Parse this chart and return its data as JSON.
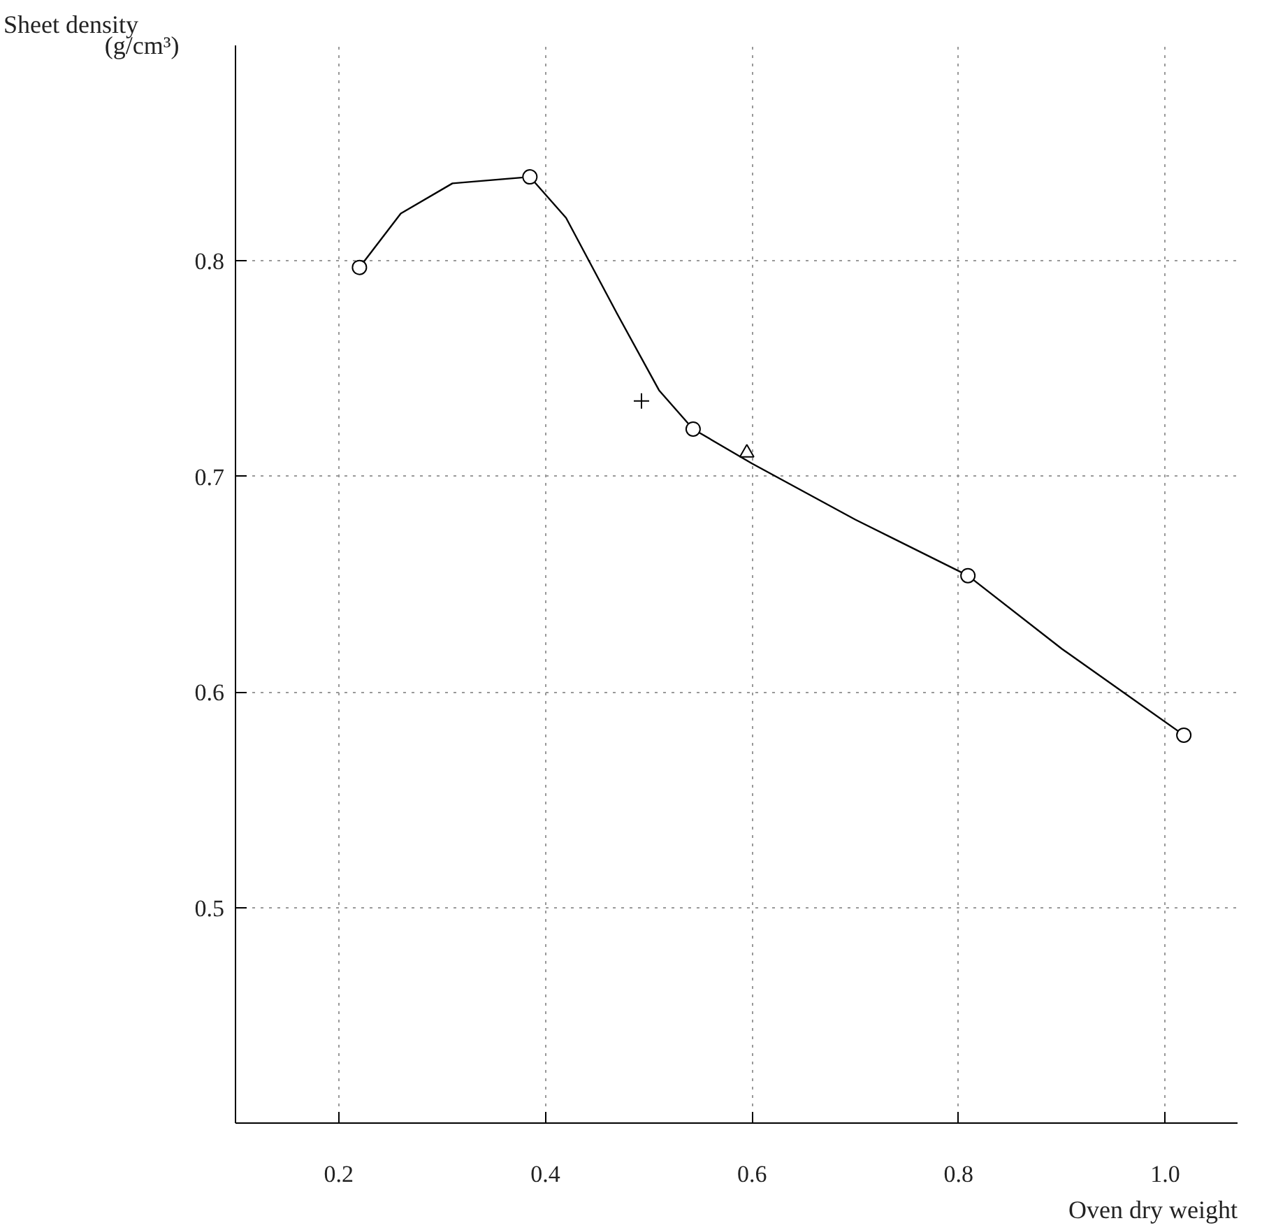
{
  "chart_data": {
    "type": "scatter",
    "ylabel": "Sheet density",
    "xlabel": "Oven dry weight",
    "annotations": [
      "(g/cm³)"
    ],
    "xlim": [
      0.1,
      1.07
    ],
    "ylim": [
      0.4,
      0.9
    ],
    "xticks": [
      0.2,
      0.4,
      0.6,
      0.8,
      {
        "value": 1,
        "label": "1.0"
      }
    ],
    "yticks": [
      0.5,
      0.6,
      0.7,
      0.8
    ],
    "grid": true,
    "series": [
      {
        "type": "line",
        "marker": "none",
        "color": "#000000",
        "x": [
          0.22,
          0.26,
          0.31,
          0.385,
          0.42,
          0.47,
          0.51,
          0.543,
          0.6,
          0.7,
          0.809,
          0.9,
          1.018
        ],
        "values": [
          0.797,
          0.822,
          0.836,
          0.839,
          0.82,
          0.775,
          0.74,
          0.722,
          0.706,
          0.68,
          0.654,
          0.62,
          0.58
        ]
      },
      {
        "marker": "circle",
        "color": "#000000",
        "x": [
          0.22,
          0.385,
          0.543,
          0.809,
          1.018
        ],
        "values": [
          0.797,
          0.839,
          0.722,
          0.654,
          0.58
        ]
      },
      {
        "marker": "cross",
        "color": "#000000",
        "x": [
          0.493
        ],
        "values": [
          0.735
        ]
      },
      {
        "marker": "triangle",
        "color": "#000000",
        "x": [
          0.595
        ],
        "values": [
          0.711
        ]
      }
    ]
  }
}
